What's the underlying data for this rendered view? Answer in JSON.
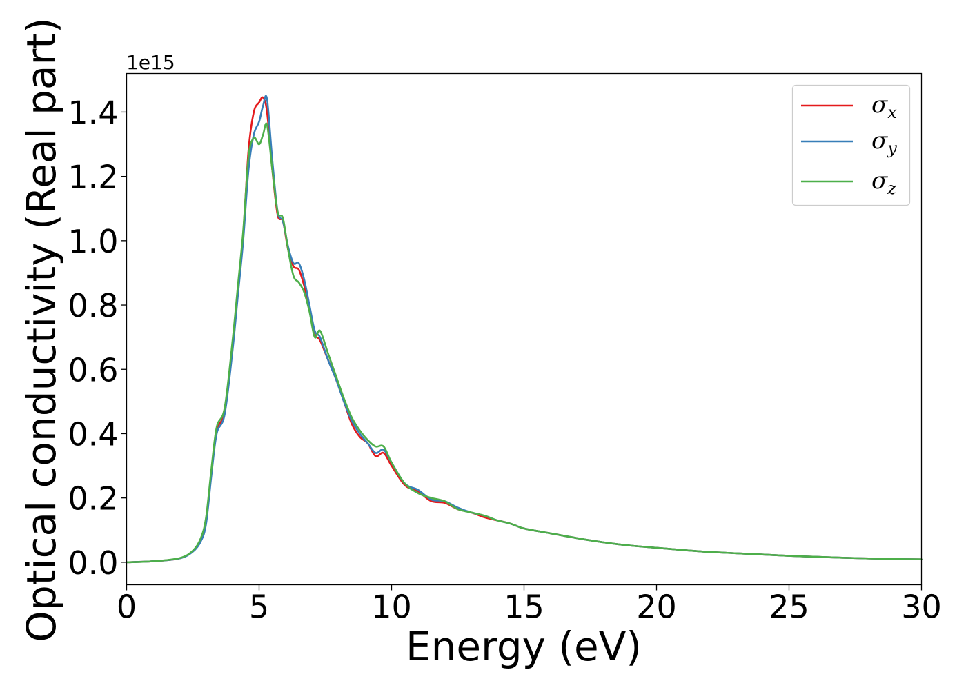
{
  "chart_data": {
    "type": "line",
    "title": "",
    "xlabel": "Energy (eV)",
    "ylabel": "Optical conductivity (Real part)",
    "y_multiplier_label": "1e15",
    "y_multiplier": 1000000000000000.0,
    "xlim": [
      0,
      30
    ],
    "ylim": [
      -0.07,
      1.52
    ],
    "xticks": [
      0,
      5,
      10,
      15,
      20,
      25,
      30
    ],
    "xtick_labels": [
      "0",
      "5",
      "10",
      "15",
      "20",
      "25",
      "30"
    ],
    "yticks": [
      0.0,
      0.2,
      0.4,
      0.6,
      0.8,
      1.0,
      1.2,
      1.4
    ],
    "ytick_labels": [
      "0.0",
      "0.2",
      "0.4",
      "0.6",
      "0.8",
      "1.0",
      "1.2",
      "1.4"
    ],
    "grid": false,
    "legend_position": "top-right",
    "series": [
      {
        "name": "σx",
        "symbol": "σ",
        "subscript": "x",
        "color": "#e41a1c",
        "x": [
          0,
          1,
          2,
          2.5,
          2.8,
          3.0,
          3.2,
          3.4,
          3.7,
          4.0,
          4.2,
          4.4,
          4.6,
          4.8,
          5.0,
          5.15,
          5.3,
          5.5,
          5.7,
          5.9,
          6.1,
          6.3,
          6.5,
          6.7,
          6.9,
          7.1,
          7.3,
          7.6,
          7.9,
          8.2,
          8.5,
          8.8,
          9.1,
          9.4,
          9.7,
          10.0,
          10.5,
          11.0,
          11.5,
          12.0,
          12.5,
          13.0,
          13.5,
          14.0,
          14.5,
          15.0,
          16,
          17,
          18,
          19,
          20,
          21,
          22,
          23,
          24,
          25,
          26,
          27,
          28,
          29,
          30
        ],
        "y": [
          0.0,
          0.003,
          0.012,
          0.035,
          0.07,
          0.13,
          0.28,
          0.41,
          0.47,
          0.68,
          0.85,
          1.02,
          1.28,
          1.4,
          1.43,
          1.445,
          1.4,
          1.22,
          1.08,
          1.06,
          0.97,
          0.92,
          0.91,
          0.86,
          0.79,
          0.71,
          0.69,
          0.63,
          0.57,
          0.5,
          0.43,
          0.39,
          0.37,
          0.33,
          0.34,
          0.3,
          0.24,
          0.22,
          0.19,
          0.185,
          0.165,
          0.155,
          0.14,
          0.13,
          0.12,
          0.105,
          0.09,
          0.075,
          0.062,
          0.052,
          0.045,
          0.038,
          0.032,
          0.028,
          0.024,
          0.02,
          0.017,
          0.014,
          0.012,
          0.01,
          0.009
        ]
      },
      {
        "name": "σy",
        "symbol": "σ",
        "subscript": "y",
        "color": "#377eb8",
        "x": [
          0,
          1,
          2,
          2.5,
          2.8,
          3.0,
          3.2,
          3.4,
          3.7,
          4.0,
          4.2,
          4.4,
          4.6,
          4.8,
          5.0,
          5.15,
          5.3,
          5.5,
          5.7,
          5.9,
          6.1,
          6.3,
          6.5,
          6.7,
          6.9,
          7.1,
          7.3,
          7.6,
          7.9,
          8.2,
          8.5,
          8.8,
          9.1,
          9.4,
          9.7,
          10.0,
          10.5,
          11.0,
          11.5,
          12.0,
          12.5,
          13.0,
          13.5,
          14.0,
          14.5,
          15.0,
          16,
          17,
          18,
          19,
          20,
          21,
          22,
          23,
          24,
          25,
          26,
          27,
          28,
          29,
          30
        ],
        "y": [
          0.0,
          0.003,
          0.012,
          0.033,
          0.065,
          0.12,
          0.27,
          0.4,
          0.46,
          0.66,
          0.83,
          1.0,
          1.22,
          1.33,
          1.37,
          1.42,
          1.44,
          1.25,
          1.09,
          1.06,
          0.98,
          0.93,
          0.93,
          0.88,
          0.8,
          0.72,
          0.7,
          0.63,
          0.57,
          0.5,
          0.44,
          0.4,
          0.37,
          0.34,
          0.35,
          0.31,
          0.245,
          0.225,
          0.195,
          0.19,
          0.17,
          0.155,
          0.145,
          0.13,
          0.12,
          0.105,
          0.09,
          0.075,
          0.062,
          0.052,
          0.045,
          0.038,
          0.032,
          0.028,
          0.024,
          0.02,
          0.017,
          0.014,
          0.012,
          0.01,
          0.009
        ]
      },
      {
        "name": "σz",
        "symbol": "σ",
        "subscript": "z",
        "color": "#4daf4a",
        "x": [
          0,
          1,
          2,
          2.5,
          2.8,
          3.0,
          3.2,
          3.4,
          3.7,
          4.0,
          4.2,
          4.4,
          4.6,
          4.8,
          5.0,
          5.15,
          5.3,
          5.5,
          5.7,
          5.9,
          6.1,
          6.3,
          6.5,
          6.7,
          6.9,
          7.1,
          7.3,
          7.6,
          7.9,
          8.2,
          8.5,
          8.8,
          9.1,
          9.4,
          9.7,
          10.0,
          10.5,
          11.0,
          11.5,
          12.0,
          12.5,
          13.0,
          13.5,
          14.0,
          14.5,
          15.0,
          16,
          17,
          18,
          19,
          20,
          21,
          22,
          23,
          24,
          25,
          26,
          27,
          28,
          29,
          30
        ],
        "y": [
          0.0,
          0.003,
          0.013,
          0.036,
          0.075,
          0.14,
          0.29,
          0.42,
          0.48,
          0.69,
          0.86,
          1.03,
          1.26,
          1.32,
          1.3,
          1.33,
          1.36,
          1.22,
          1.09,
          1.07,
          0.97,
          0.89,
          0.87,
          0.84,
          0.78,
          0.7,
          0.72,
          0.65,
          0.58,
          0.51,
          0.45,
          0.41,
          0.38,
          0.36,
          0.36,
          0.31,
          0.245,
          0.215,
          0.2,
          0.19,
          0.165,
          0.155,
          0.145,
          0.13,
          0.12,
          0.105,
          0.09,
          0.075,
          0.062,
          0.052,
          0.045,
          0.038,
          0.032,
          0.028,
          0.024,
          0.02,
          0.017,
          0.014,
          0.012,
          0.01,
          0.009
        ]
      }
    ]
  }
}
